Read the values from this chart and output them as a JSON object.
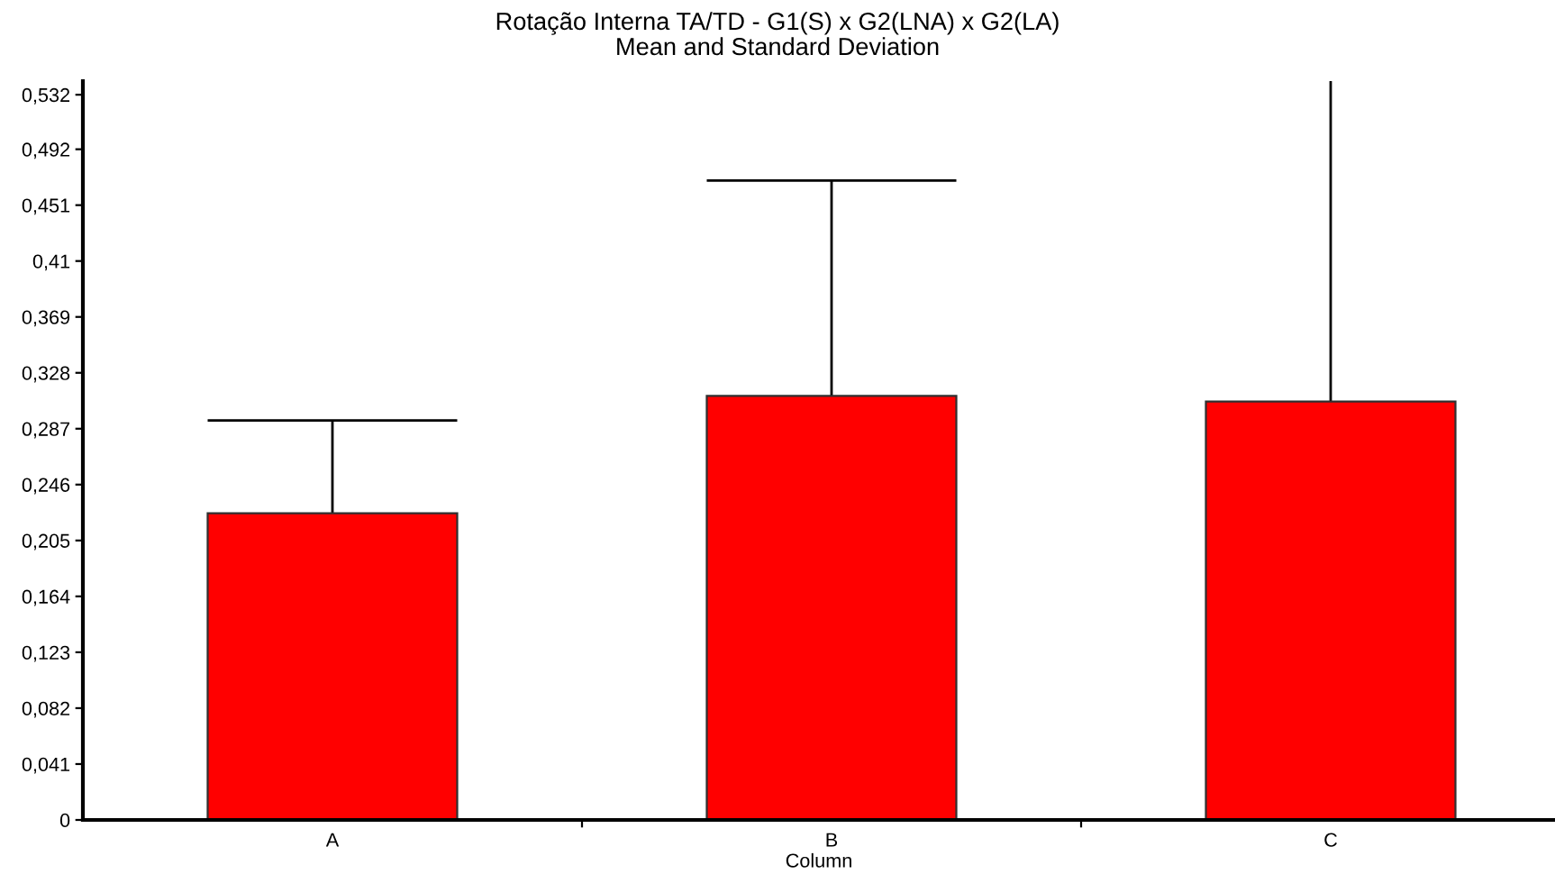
{
  "chart_data": {
    "type": "bar",
    "title": "Rotação Interna TA/TD - G1(S) x G2(LNA) x G2(LA)",
    "subtitle": "Mean and Standard Deviation",
    "xlabel": "Column",
    "categories": [
      "A",
      "B",
      "C"
    ],
    "values": [
      0.225,
      0.311,
      0.307
    ],
    "errors": [
      [
        0.225,
        0.293
      ],
      [
        0.311,
        0.469
      ],
      [
        0.307,
        0.542
      ]
    ],
    "color": "#ff0000",
    "ylim": [
      0,
      0.542
    ],
    "yticks": [
      0,
      {
        "value": 0.041,
        "label": "0,041"
      },
      {
        "value": 0.082,
        "label": "0,082"
      },
      {
        "value": 0.123,
        "label": "0,123"
      },
      {
        "value": 0.164,
        "label": "0,164"
      },
      {
        "value": 0.205,
        "label": "0,205"
      },
      {
        "value": 0.246,
        "label": "0,246"
      },
      {
        "value": 0.287,
        "label": "0,287"
      },
      {
        "value": 0.328,
        "label": "0,328"
      },
      {
        "value": 0.369,
        "label": "0,369"
      },
      {
        "value": 0.41,
        "label": "0,41"
      },
      {
        "value": 0.451,
        "label": "0,451"
      },
      {
        "value": 0.492,
        "label": "0,492"
      },
      {
        "value": 0.532,
        "label": "0,532"
      }
    ],
    "grid": false
  }
}
